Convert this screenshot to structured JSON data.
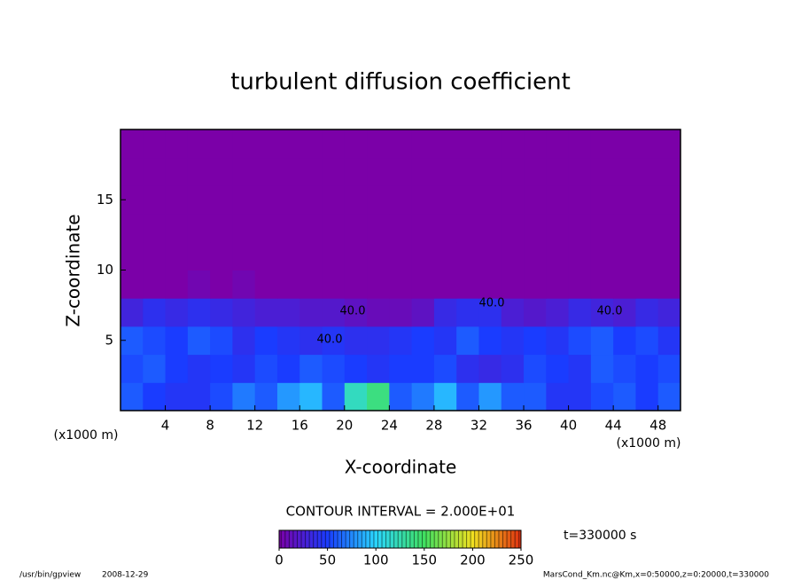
{
  "chart_data": {
    "type": "heatmap",
    "title": "turbulent diffusion coefficient",
    "x_label": "X-coordinate",
    "y_label": "Z-coordinate",
    "x_unit": "(x1000 m)",
    "y_unit": "(x1000 m)",
    "xlim": [
      0,
      50
    ],
    "xticks": [
      4,
      8,
      12,
      16,
      20,
      24,
      28,
      32,
      36,
      40,
      44,
      48
    ],
    "ylim": [
      0,
      20
    ],
    "yticks": [
      5,
      10,
      15
    ],
    "x": [
      1,
      3,
      5,
      7,
      9,
      11,
      13,
      15,
      17,
      19,
      21,
      23,
      25,
      27,
      29,
      31,
      33,
      35,
      37,
      39,
      41,
      43,
      45,
      47,
      49
    ],
    "y": [
      1,
      3,
      5,
      7,
      9,
      11,
      13,
      15,
      17,
      19
    ],
    "cell_size": 2,
    "values": [
      [
        60,
        50,
        45,
        45,
        55,
        70,
        60,
        80,
        90,
        60,
        120,
        140,
        60,
        70,
        90,
        60,
        80,
        60,
        60,
        45,
        45,
        55,
        60,
        50,
        60
      ],
      [
        55,
        60,
        50,
        45,
        50,
        45,
        55,
        50,
        60,
        55,
        50,
        45,
        50,
        50,
        55,
        40,
        35,
        40,
        55,
        50,
        45,
        60,
        55,
        50,
        55
      ],
      [
        60,
        55,
        50,
        60,
        55,
        40,
        50,
        45,
        40,
        45,
        40,
        40,
        45,
        50,
        45,
        60,
        50,
        45,
        50,
        45,
        55,
        60,
        50,
        55,
        45
      ],
      [
        30,
        40,
        35,
        40,
        35,
        30,
        25,
        25,
        20,
        20,
        15,
        10,
        10,
        15,
        35,
        40,
        40,
        25,
        20,
        25,
        35,
        30,
        25,
        35,
        30
      ],
      [
        0,
        0,
        0,
        5,
        0,
        5,
        0,
        0,
        0,
        0,
        0,
        0,
        0,
        0,
        0,
        0,
        0,
        0,
        0,
        0,
        0,
        0,
        0,
        0,
        0
      ],
      [
        0,
        0,
        0,
        0,
        0,
        0,
        0,
        0,
        0,
        0,
        0,
        0,
        0,
        0,
        0,
        0,
        0,
        0,
        0,
        0,
        0,
        0,
        0,
        0,
        0
      ],
      [
        0,
        0,
        0,
        0,
        0,
        0,
        0,
        0,
        0,
        0,
        0,
        0,
        0,
        0,
        0,
        0,
        0,
        0,
        0,
        0,
        0,
        0,
        0,
        0,
        0
      ],
      [
        0,
        0,
        0,
        0,
        0,
        0,
        0,
        0,
        0,
        0,
        0,
        0,
        0,
        0,
        0,
        0,
        0,
        0,
        0,
        0,
        0,
        0,
        0,
        0,
        0
      ],
      [
        0,
        0,
        0,
        0,
        0,
        0,
        0,
        0,
        0,
        0,
        0,
        0,
        0,
        0,
        0,
        0,
        0,
        0,
        0,
        0,
        0,
        0,
        0,
        0,
        0
      ],
      [
        0,
        0,
        0,
        0,
        0,
        0,
        0,
        0,
        0,
        0,
        0,
        0,
        0,
        0,
        0,
        0,
        0,
        0,
        0,
        0,
        0,
        0,
        0,
        0,
        0
      ]
    ],
    "annotations": [
      "40.0",
      "40.0",
      "40.0",
      "40.0"
    ],
    "contour_interval": "CONTOUR INTERVAL = 2.000E+01",
    "time_label": "t=330000 s",
    "colorbar": {
      "ticks": [
        0,
        50,
        100,
        150,
        200,
        250
      ],
      "colors": [
        "#7b00a8",
        "#1a3cff",
        "#2ad6ff",
        "#40e060",
        "#f0e020",
        "#e03010"
      ]
    },
    "footer_left": [
      "/usr/bin/gpview",
      "2008-12-29"
    ],
    "footer_right": "MarsCond_Km.nc@Km,x=0:50000,z=0:20000,t=330000"
  }
}
